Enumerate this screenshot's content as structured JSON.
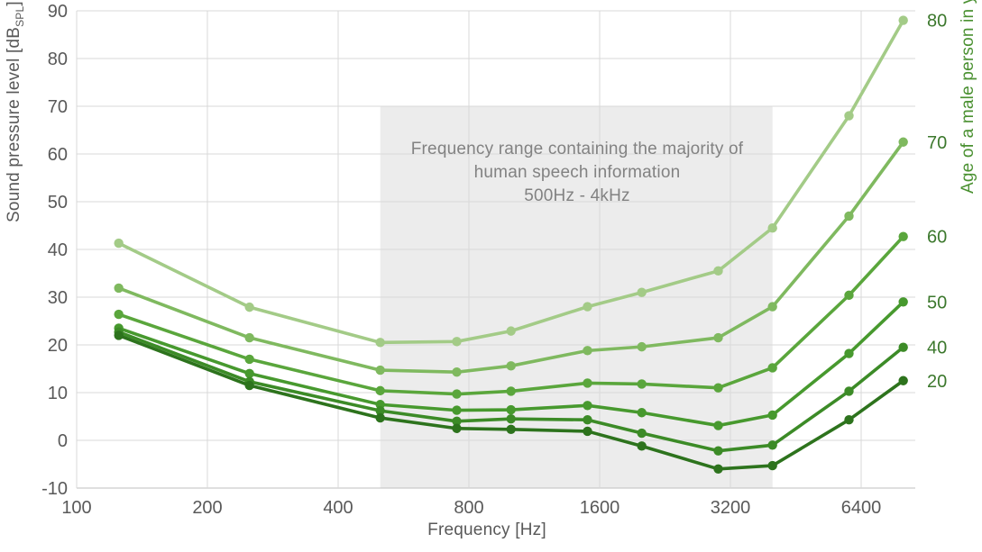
{
  "figure": {
    "background": "#ffffff",
    "grid_color": "#d9d9d9",
    "axis_line_color": "#bfbfbf",
    "tick_text_color": "#595959",
    "band_color": "#ececec",
    "band_text_color": "#828282",
    "right_tick_text_color": "#3c782d",
    "right_title_color": "#4b9132"
  },
  "chart_data": {
    "type": "line",
    "x_scale": "log2",
    "x_label": "Frequency [Hz]",
    "y_label_prefix": "Sound pressure level [dB",
    "y_label_sub": "SPL",
    "y_label_suffix": "]",
    "right_axis_label": "Age of a male person in years",
    "x_ticks": [
      100,
      200,
      400,
      800,
      1600,
      3200,
      6400
    ],
    "y_ticks": [
      90,
      80,
      70,
      60,
      50,
      40,
      30,
      20,
      10,
      0,
      -10
    ],
    "ylim": [
      -10,
      90
    ],
    "xlim_hz": [
      100,
      8900
    ],
    "grid": true,
    "legend_position": "right-edge-labels",
    "frequencies_hz": [
      125,
      250,
      500,
      750,
      1000,
      1500,
      2000,
      3000,
      4000,
      6000,
      8000
    ],
    "series": [
      {
        "age": "80",
        "color": "#a3cb87",
        "spl_db": [
          41.3,
          27.9,
          20.5,
          20.7,
          22.9,
          28.0,
          31.0,
          35.5,
          44.5,
          68.0,
          88.0
        ]
      },
      {
        "age": "70",
        "color": "#7fb95f",
        "spl_db": [
          31.9,
          21.5,
          14.7,
          14.3,
          15.6,
          18.8,
          19.6,
          21.5,
          28.0,
          47.0,
          62.5
        ]
      },
      {
        "age": "60",
        "color": "#5aa63c",
        "spl_db": [
          26.4,
          17.0,
          10.4,
          9.7,
          10.3,
          12.0,
          11.8,
          11.0,
          15.2,
          30.4,
          42.7
        ]
      },
      {
        "age": "50",
        "color": "#47992e",
        "spl_db": [
          23.5,
          14.0,
          7.5,
          6.3,
          6.4,
          7.3,
          5.8,
          3.1,
          5.3,
          18.2,
          29.0
        ]
      },
      {
        "age": "40",
        "color": "#3c8b27",
        "spl_db": [
          22.7,
          12.3,
          6.2,
          4.0,
          4.5,
          4.3,
          1.5,
          -2.2,
          -1.0,
          10.3,
          19.5
        ]
      },
      {
        "age": "20",
        "color": "#2d731d",
        "spl_db": [
          22.0,
          11.5,
          4.7,
          2.5,
          2.3,
          1.9,
          -1.2,
          -6.0,
          -5.3,
          4.3,
          12.5
        ]
      }
    ],
    "annotation": {
      "line1": "Frequency range containing the majority of",
      "line2": "human speech information",
      "line3": "500Hz - 4kHz",
      "band_freq_range_hz": [
        500,
        4000
      ],
      "band_top_db": 70
    }
  }
}
